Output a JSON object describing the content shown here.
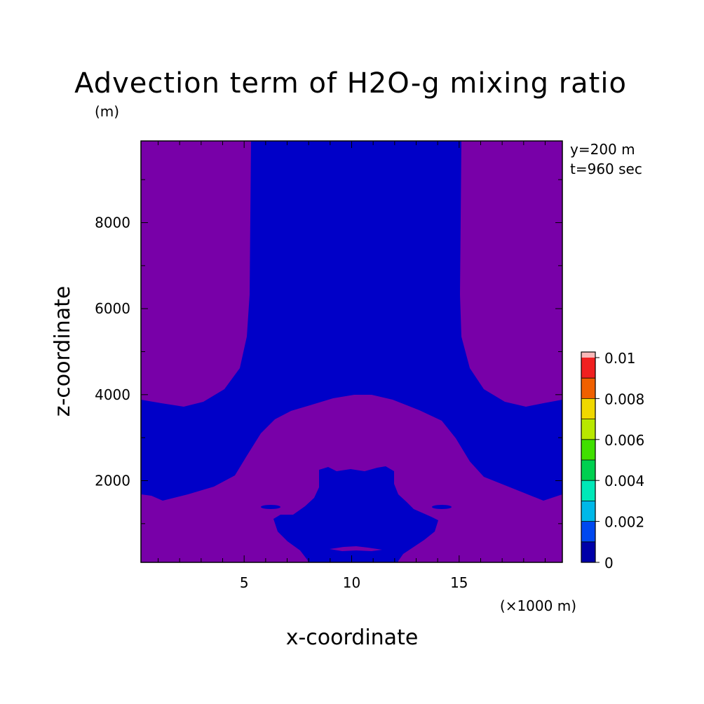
{
  "chart_data": {
    "type": "heatmap",
    "title": "Advection term of H2O-g mixing ratio",
    "xlabel": "x-coordinate",
    "ylabel": "z-coordinate",
    "x_unit": "(×1000 m)",
    "y_unit": "(m)",
    "info_lines": [
      "y=200 m",
      "t=960 sec"
    ],
    "xlim": [
      0.2,
      19.8
    ],
    "ylim": [
      100,
      9900
    ],
    "x_ticks": [
      5,
      10,
      15
    ],
    "y_ticks": [
      2000,
      4000,
      6000,
      8000
    ],
    "contour_levels": [
      0,
      0.001,
      0.002,
      0.003,
      0.004,
      0.005,
      0.006,
      0.007,
      0.008,
      0.009,
      0.01
    ],
    "colorbar_labels": [
      "0",
      "0.002",
      "0.004",
      "0.006",
      "0.008",
      "0.01"
    ],
    "colorbar_colors": [
      "#0000a8",
      "#0048f0",
      "#00b8e8",
      "#00e8b8",
      "#00d050",
      "#40e000",
      "#b8e800",
      "#f0d800",
      "#f06000",
      "#f02020",
      "#f8b8b8"
    ],
    "region_colors": {
      "below_zero": "#7800a8",
      "zero_to_0.001": "#0000c8"
    }
  }
}
